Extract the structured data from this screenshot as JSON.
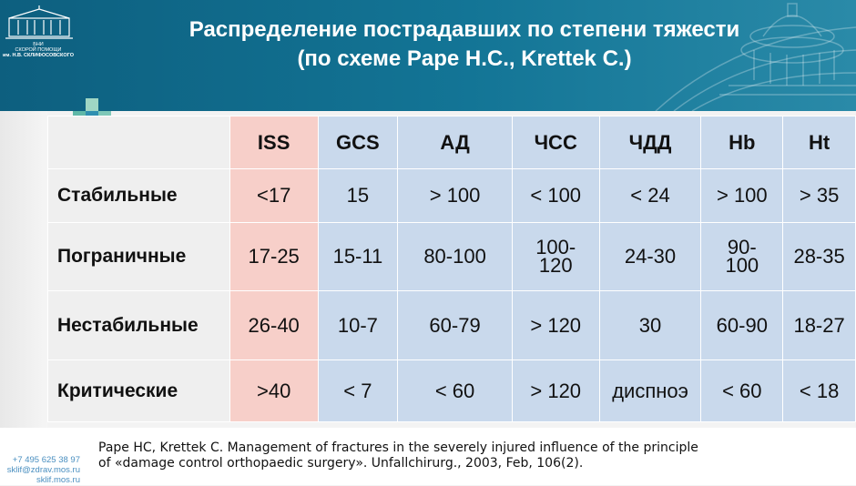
{
  "logo": {
    "line1": "БНИ",
    "line2": "СКОРОЙ ПОМОЩИ",
    "line3": "им. Н.В. СКЛИФОСОВСКОГО"
  },
  "title": {
    "line1": "Распределение пострадавших по степени тяжести",
    "line2": "(по схеме Pape H.C., Krettek C.)"
  },
  "table": {
    "headers": [
      "ISS",
      "GCS",
      "АД",
      "ЧСС",
      "ЧДД",
      "Hb",
      "Ht"
    ],
    "rows": [
      {
        "label": "Стабильные",
        "cells": [
          "<17",
          "15",
          "> 100",
          "< 100",
          "< 24",
          "> 100",
          "> 35"
        ]
      },
      {
        "label": "Пограничные",
        "cells": [
          "17-25",
          "15-11",
          "80-100",
          "100-\n120",
          "24-30",
          "90-\n100",
          "28-35"
        ]
      },
      {
        "label": "Нестабильные",
        "cells": [
          "26-40",
          "10-7",
          "60-79",
          "> 120",
          "30",
          "60-90",
          "18-27"
        ]
      },
      {
        "label": "Критические",
        "cells": [
          ">40",
          "< 7",
          "< 60",
          "> 120",
          "диспноэ",
          "< 60",
          "< 18"
        ]
      }
    ]
  },
  "contacts": {
    "phone": "+7 495 625 38 97",
    "email": "sklif@zdrav.mos.ru",
    "site": "sklif.mos.ru"
  },
  "citation": {
    "line1": "Pape HC, Krettek C.  Management of fractures in the severely injured influence of the principle",
    "line2": "of «damage control orthopaedic surgery». Unfallchirurg., 2003, Feb, 106(2)."
  },
  "colors": {
    "header": "#137596",
    "iss_column": "#f7cfc9",
    "parameter_columns": "#c9d9ec",
    "row_labels": "#efefef"
  }
}
